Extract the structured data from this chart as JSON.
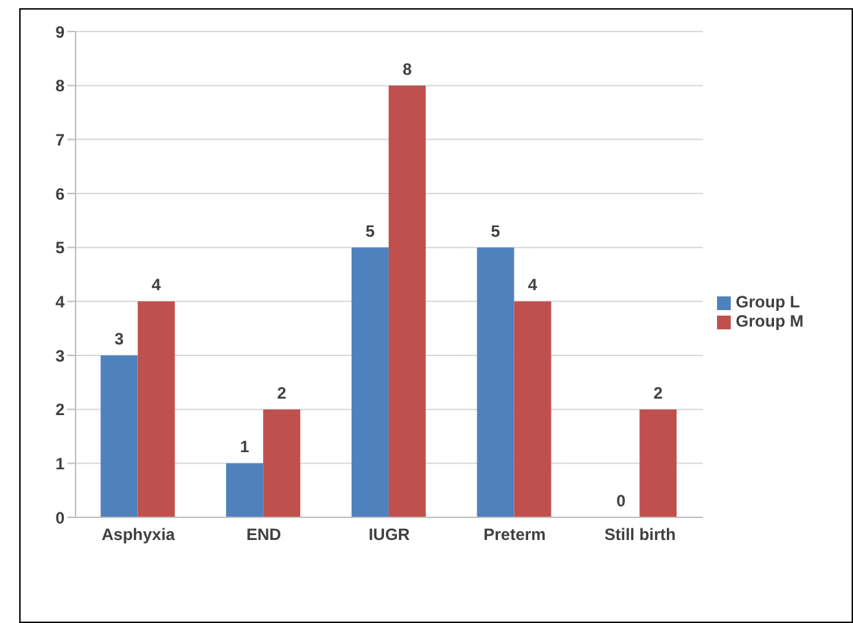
{
  "chart_data": {
    "type": "bar",
    "categories": [
      "Asphyxia",
      "END",
      "IUGR",
      "Preterm",
      "Still birth"
    ],
    "series": [
      {
        "name": "Group L",
        "color": "#4f81bd",
        "values": [
          3,
          1,
          5,
          5,
          0
        ]
      },
      {
        "name": "Group M",
        "color": "#c0504d",
        "values": [
          4,
          2,
          8,
          4,
          2
        ]
      }
    ],
    "ylim": [
      0,
      9
    ],
    "yticks": [
      0,
      1,
      2,
      3,
      4,
      5,
      6,
      7,
      8,
      9
    ],
    "grid": "y",
    "legend": "right",
    "data_labels": true
  }
}
